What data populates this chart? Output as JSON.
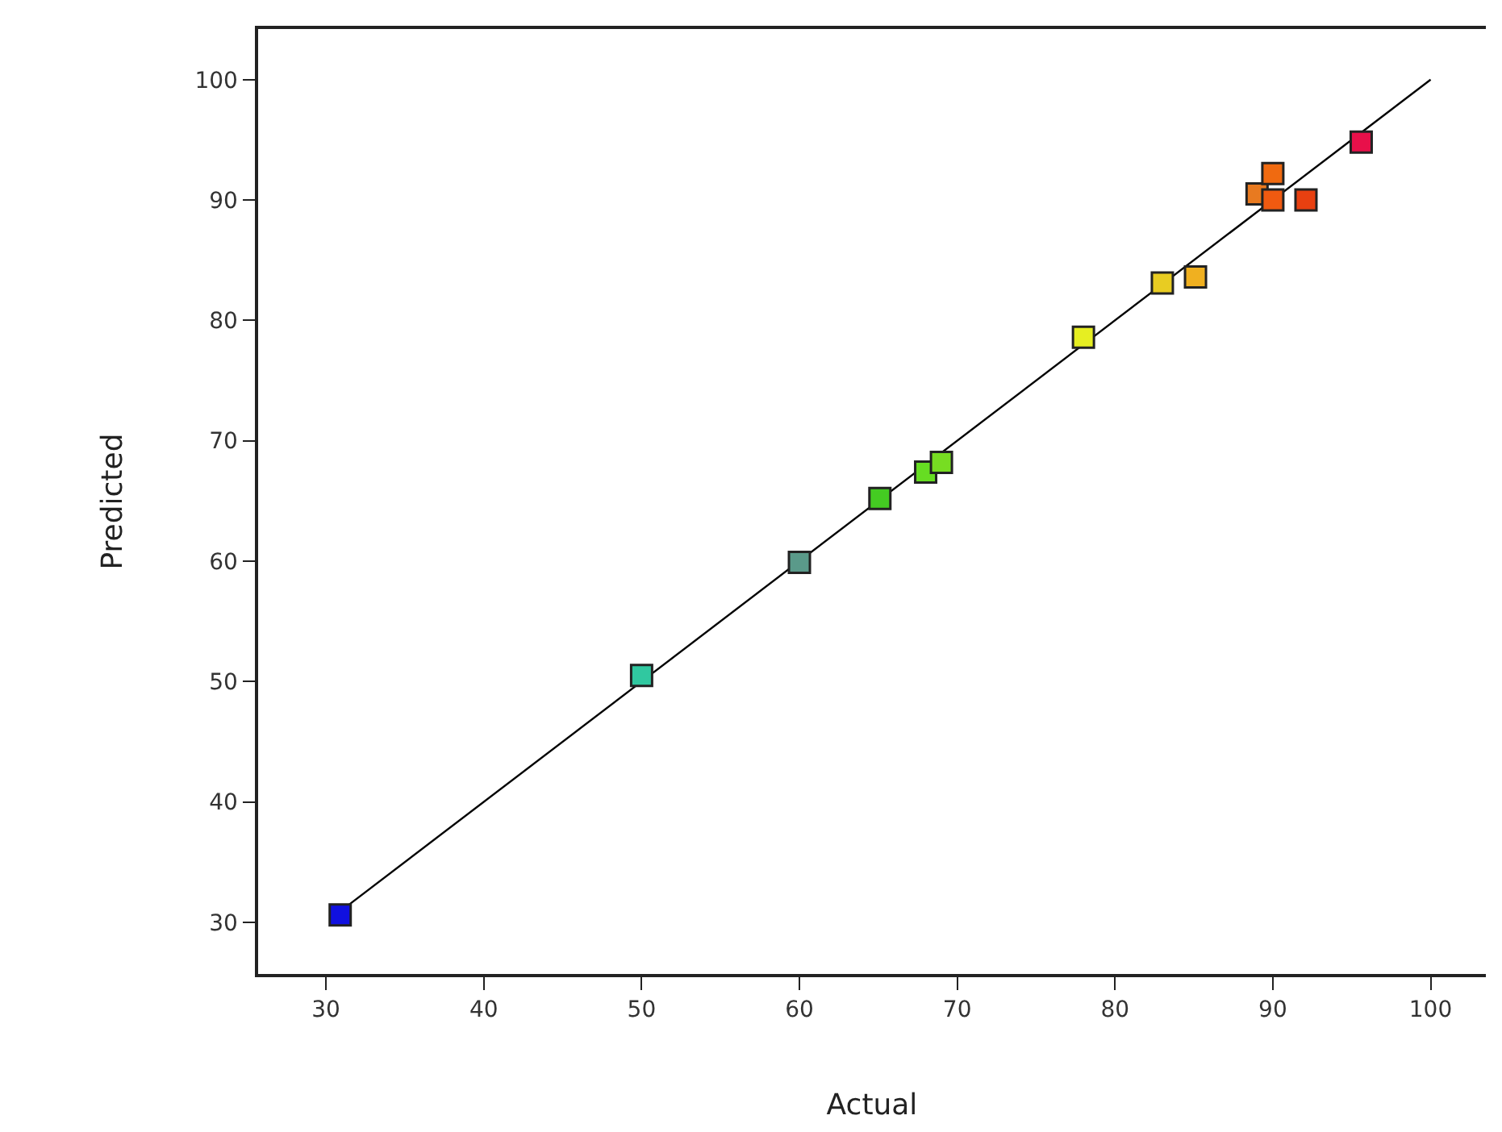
{
  "chart_data": {
    "type": "scatter",
    "xlabel": "Actual",
    "ylabel": "Predicted",
    "xlim": [
      25.7,
      103.5
    ],
    "ylim": [
      25.7,
      104.2
    ],
    "xticks": [
      30,
      40,
      50,
      60,
      70,
      80,
      90,
      100
    ],
    "yticks": [
      30,
      40,
      50,
      60,
      70,
      80,
      90,
      100
    ],
    "marker": "square",
    "series": [
      {
        "x": [
          30.9,
          50.0,
          60.0,
          65.1,
          68.0,
          69.0,
          78.0,
          83.0,
          85.1,
          89.0,
          90.0,
          90.0,
          92.1,
          95.6
        ],
        "values": [
          30.6,
          50.5,
          59.9,
          65.2,
          67.4,
          68.2,
          78.6,
          83.1,
          83.6,
          90.5,
          92.2,
          90.0,
          90.0,
          94.8
        ],
        "colors": [
          "#1010e0",
          "#30c8a0",
          "#5a9a8a",
          "#44cc22",
          "#66dd22",
          "#77dd22",
          "#e6ee22",
          "#e8cc22",
          "#f0b020",
          "#e87a20",
          "#f06a10",
          "#f05a10",
          "#e84010",
          "#e8104a"
        ]
      },
      {
        "type": "line",
        "color": "#000000",
        "line_style": "solid",
        "marker": "none",
        "x": [
          31.0,
          100.0
        ],
        "values": [
          31.0,
          100.0
        ]
      }
    ]
  }
}
